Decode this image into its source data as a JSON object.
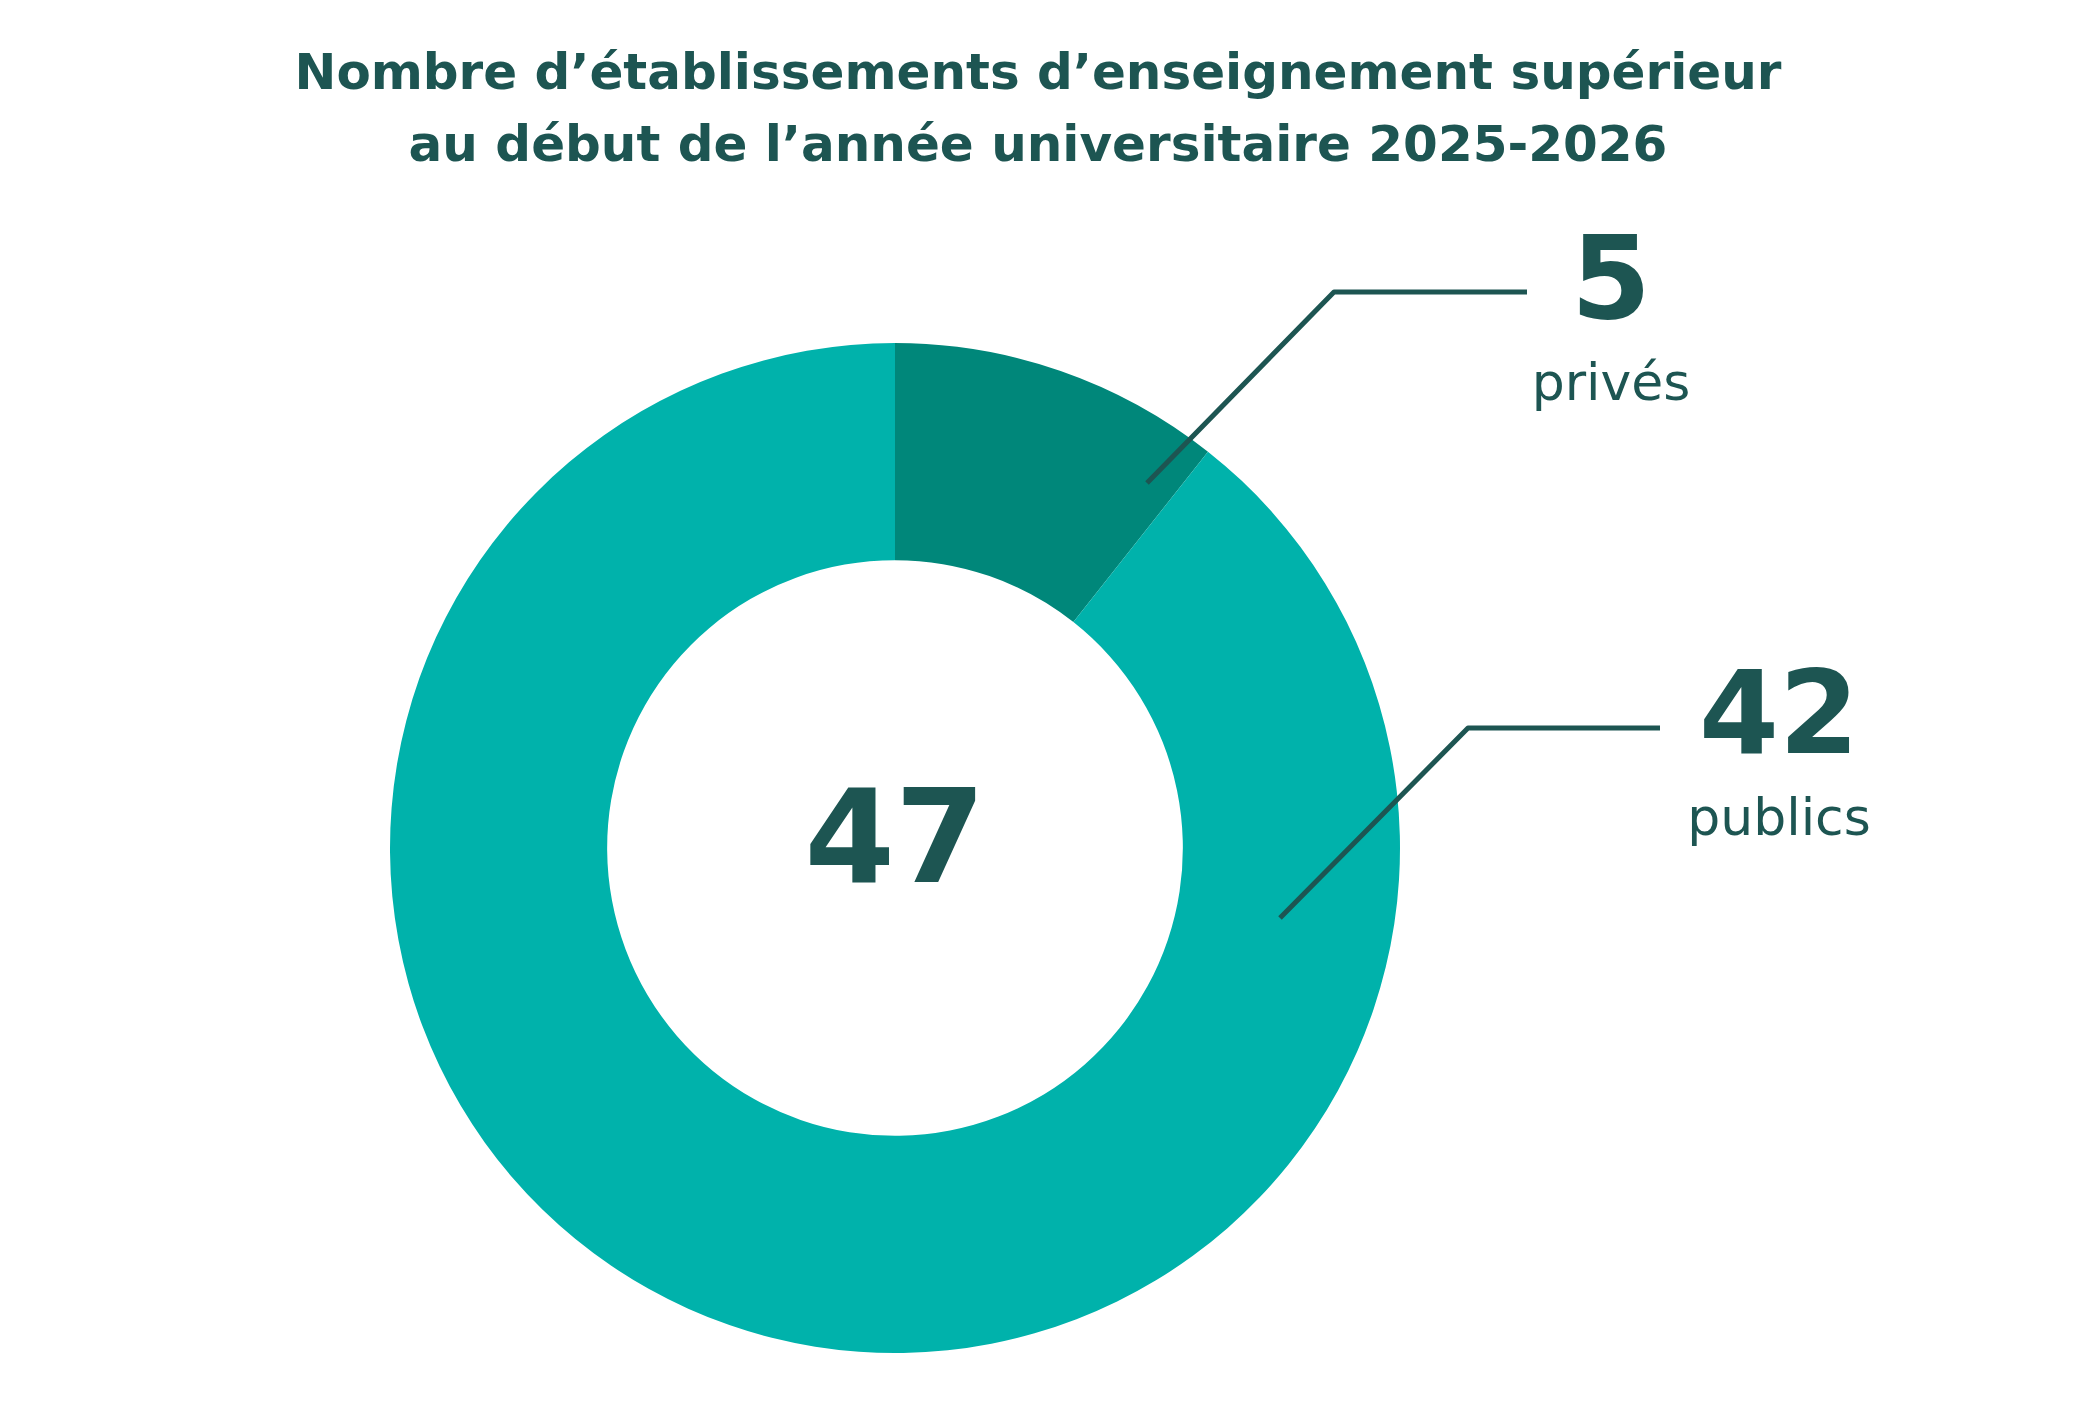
{
  "chart_data": {
    "type": "donut",
    "title": "Nombre d’établissements d’enseignement supérieur\nau début de l’année universitaire 2025-2026",
    "categories": [
      "privés",
      "publics"
    ],
    "values": [
      5,
      42
    ],
    "colors": [
      "#00877a",
      "#00b2ab"
    ],
    "data_labels": true,
    "legend": false,
    "annotations": [
      "47"
    ]
  }
}
